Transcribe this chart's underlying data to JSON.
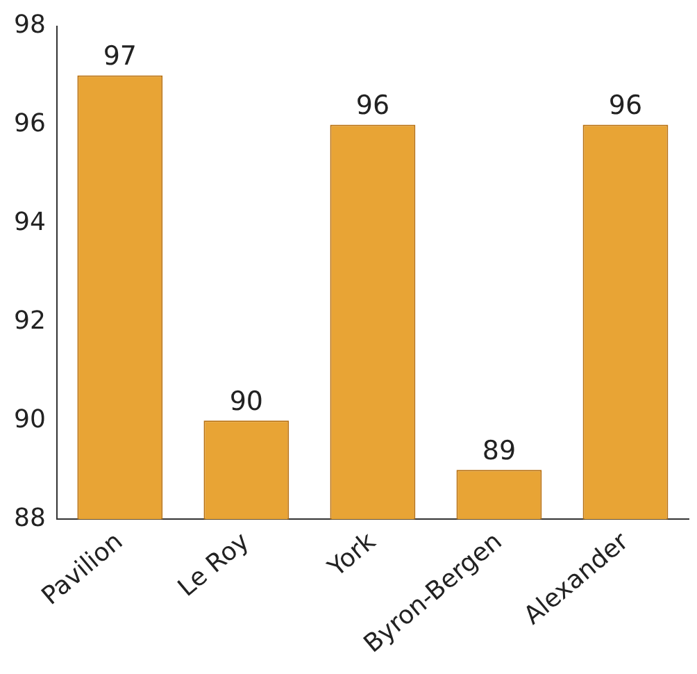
{
  "chart_data": {
    "type": "bar",
    "categories": [
      "Pavilion",
      "Le Roy",
      "York",
      "Byron-Bergen",
      "Alexander"
    ],
    "values": [
      97,
      90,
      96,
      89,
      96
    ],
    "color": "#e8a435",
    "ylim": [
      88,
      98
    ],
    "yticks": [
      88,
      90,
      92,
      94,
      96,
      98
    ],
    "grid": false,
    "data_labels": true,
    "legend": false
  }
}
